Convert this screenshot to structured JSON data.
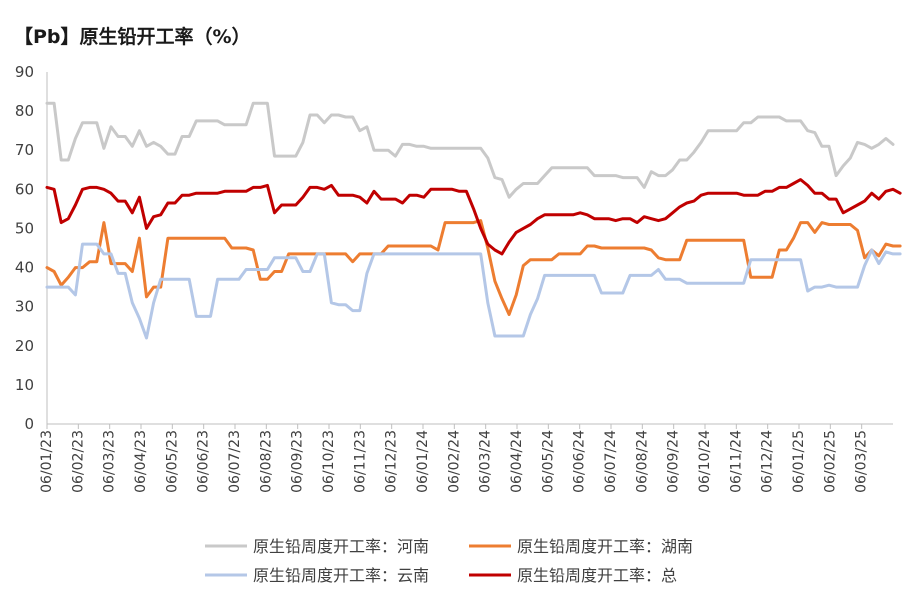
{
  "chart_data": {
    "type": "line",
    "title": "【Pb】原生铅开工率（%）",
    "ylim": [
      0,
      90
    ],
    "yticks": [
      0,
      10,
      20,
      30,
      40,
      50,
      60,
      70,
      80,
      90
    ],
    "grid": false,
    "legend_position": "bottom",
    "x_tick_labels": [
      "06/01/23",
      "06/02/23",
      "06/03/23",
      "06/04/23",
      "06/05/23",
      "06/06/23",
      "06/07/23",
      "06/08/23",
      "06/09/23",
      "06/10/23",
      "06/11/23",
      "06/12/23",
      "06/01/24",
      "06/02/24",
      "06/03/24",
      "06/04/24",
      "06/05/24",
      "06/06/24",
      "06/07/24",
      "06/08/24",
      "06/09/24",
      "06/10/24",
      "06/11/24",
      "06/12/24",
      "06/01/25",
      "06/02/25",
      "06/03/25"
    ],
    "series": [
      {
        "name": "原生铅周度开工率：河南",
        "color": "#c9c9c9",
        "values": [
          82,
          82,
          67.5,
          67.5,
          73,
          77,
          77,
          77,
          70.5,
          76,
          73.5,
          73.5,
          71,
          75,
          71,
          72,
          71,
          69,
          69,
          73.5,
          73.5,
          77.5,
          77.5,
          77.5,
          77.5,
          76.5,
          76.5,
          76.5,
          76.5,
          82,
          82,
          82,
          68.5,
          68.5,
          68.5,
          68.5,
          72,
          79,
          79,
          77,
          79,
          79,
          78.5,
          78.5,
          75,
          76,
          70,
          70,
          70,
          68.5,
          71.5,
          71.5,
          71,
          71,
          70.5,
          70.5,
          70.5,
          70.5,
          70.5,
          70.5,
          70.5,
          70.5,
          68,
          63,
          62.5,
          58,
          60,
          61.5,
          61.5,
          61.5,
          63.5,
          65.5,
          65.5,
          65.5,
          65.5,
          65.5,
          65.5,
          63.5,
          63.5,
          63.5,
          63.5,
          63,
          63,
          63,
          60.5,
          64.5,
          63.5,
          63.5,
          65,
          67.5,
          67.5,
          69.5,
          72,
          75,
          75,
          75,
          75,
          75,
          77,
          77,
          78.5,
          78.5,
          78.5,
          78.5,
          77.5,
          77.5,
          77.5,
          75,
          74.5,
          71,
          71,
          63.5,
          66,
          68,
          72,
          71.5,
          70.5,
          71.5,
          73,
          71.5
        ]
      },
      {
        "name": "原生铅周度开工率：湖南",
        "color": "#ed7d31",
        "values": [
          40,
          39,
          35.5,
          37.5,
          40,
          40,
          41.5,
          41.5,
          51.5,
          41,
          41,
          41,
          39,
          47.5,
          32.5,
          35,
          35,
          47.5,
          47.5,
          47.5,
          47.5,
          47.5,
          47.5,
          47.5,
          47.5,
          47.5,
          45,
          45,
          45,
          44.5,
          37,
          37,
          39,
          39,
          43.5,
          43.5,
          43.5,
          43.5,
          43.5,
          43.5,
          43.5,
          43.5,
          43.5,
          41.5,
          43.5,
          43.5,
          43.5,
          43.5,
          45.5,
          45.5,
          45.5,
          45.5,
          45.5,
          45.5,
          45.5,
          44.5,
          51.5,
          51.5,
          51.5,
          51.5,
          51.5,
          52,
          45,
          36.5,
          32,
          28,
          33,
          40.5,
          42,
          42,
          42,
          42,
          43.5,
          43.5,
          43.5,
          43.5,
          45.5,
          45.5,
          45,
          45,
          45,
          45,
          45,
          45,
          45,
          44.5,
          42.5,
          42,
          42,
          42,
          47,
          47,
          47,
          47,
          47,
          47,
          47,
          47,
          47,
          37.5,
          37.5,
          37.5,
          37.5,
          44.5,
          44.5,
          47.5,
          51.5,
          51.5,
          49,
          51.5,
          51,
          51,
          51,
          51,
          49.5,
          42.5,
          44.5,
          43,
          46,
          45.5,
          45.5
        ]
      },
      {
        "name": "原生铅周度开工率：云南",
        "color": "#b4c7e7",
        "values": [
          35,
          35,
          35,
          35,
          33,
          46,
          46,
          46,
          43.5,
          43.5,
          38.5,
          38.5,
          31,
          27,
          22,
          31,
          37,
          37,
          37,
          37,
          37,
          27.5,
          27.5,
          27.5,
          37,
          37,
          37,
          37,
          39.5,
          39.5,
          39.5,
          39.5,
          42.5,
          42.5,
          42.5,
          42.5,
          39,
          39,
          43.5,
          43.5,
          31,
          30.5,
          30.5,
          29,
          29,
          38.5,
          43.5,
          43.5,
          43.5,
          43.5,
          43.5,
          43.5,
          43.5,
          43.5,
          43.5,
          43.5,
          43.5,
          43.5,
          43.5,
          43.5,
          43.5,
          43.5,
          31,
          22.5,
          22.5,
          22.5,
          22.5,
          22.5,
          28,
          32,
          38,
          38,
          38,
          38,
          38,
          38,
          38,
          38,
          33.5,
          33.5,
          33.5,
          33.5,
          38,
          38,
          38,
          38,
          39.5,
          37,
          37,
          37,
          36,
          36,
          36,
          36,
          36,
          36,
          36,
          36,
          36,
          42,
          42,
          42,
          42,
          42,
          42,
          42,
          42,
          34,
          35,
          35,
          35.5,
          35,
          35,
          35,
          35,
          40.5,
          44.5,
          41,
          44,
          43.5,
          43.5
        ]
      },
      {
        "name": "原生铅周度开工率：总",
        "color": "#c00000",
        "values": [
          60.5,
          60,
          51.5,
          52.5,
          56,
          60,
          60.5,
          60.5,
          60,
          59,
          57,
          57,
          54,
          58,
          50,
          53,
          53.5,
          56.5,
          56.5,
          58.5,
          58.5,
          59,
          59,
          59,
          59,
          59.5,
          59.5,
          59.5,
          59.5,
          60.5,
          60.5,
          61,
          54,
          56,
          56,
          56,
          58,
          60.5,
          60.5,
          60,
          61,
          58.5,
          58.5,
          58.5,
          58,
          56.5,
          59.5,
          57.5,
          57.5,
          57.5,
          56.5,
          58.5,
          58.5,
          58,
          60,
          60,
          60,
          60,
          59.5,
          59.5,
          55,
          50,
          46,
          44.5,
          43.5,
          46.5,
          49,
          50,
          51,
          52.5,
          53.5,
          53.5,
          53.5,
          53.5,
          53.5,
          54,
          53.5,
          52.5,
          52.5,
          52.5,
          52,
          52.5,
          52.5,
          51.5,
          53,
          52.5,
          52,
          52.5,
          54,
          55.5,
          56.5,
          57,
          58.5,
          59,
          59,
          59,
          59,
          59,
          58.5,
          58.5,
          58.5,
          59.5,
          59.5,
          60.5,
          60.5,
          61.5,
          62.5,
          61,
          59,
          59,
          57.5,
          57.5,
          54,
          55,
          56,
          57,
          59,
          57.5,
          59.5,
          60,
          59
        ]
      }
    ]
  }
}
